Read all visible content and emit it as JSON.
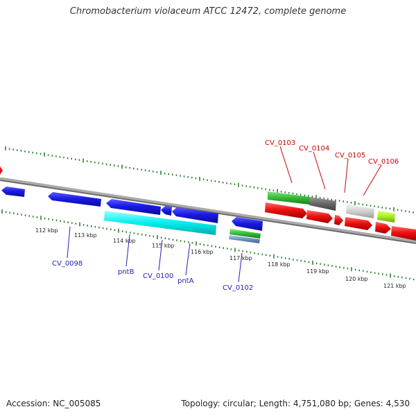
{
  "title": "Chromobacterium violaceum ATCC 12472, complete genome",
  "footer": {
    "accession": "Accession: NC_005085",
    "summary": "Topology: circular; Length: 4,751,080 bp; Genes: 4,530"
  },
  "scale_labels": [
    "112 kbp",
    "113 kbp",
    "114 kbp",
    "115 kbp",
    "116 kbp",
    "117 kbp",
    "118 kbp",
    "119 kbp",
    "120 kbp",
    "121 kbp"
  ],
  "gene_labels": {
    "reverse": [
      "CV_0098",
      "pntB",
      "CV_0100",
      "pntA",
      "CV_0102"
    ],
    "forward": [
      "CV_0103",
      "CV_0104",
      "CV_0105",
      "CV_0106"
    ]
  },
  "colors": {
    "reverse_label": "#1f1fb4",
    "forward_label": "#cc0000",
    "reverse_cds": "#1a1ae6",
    "forward_cds": "#ee1111",
    "protein_feature": "#00eeee",
    "green_feature": "#33bb33",
    "tick": "#1e7b1e",
    "backbone": "#888888"
  }
}
